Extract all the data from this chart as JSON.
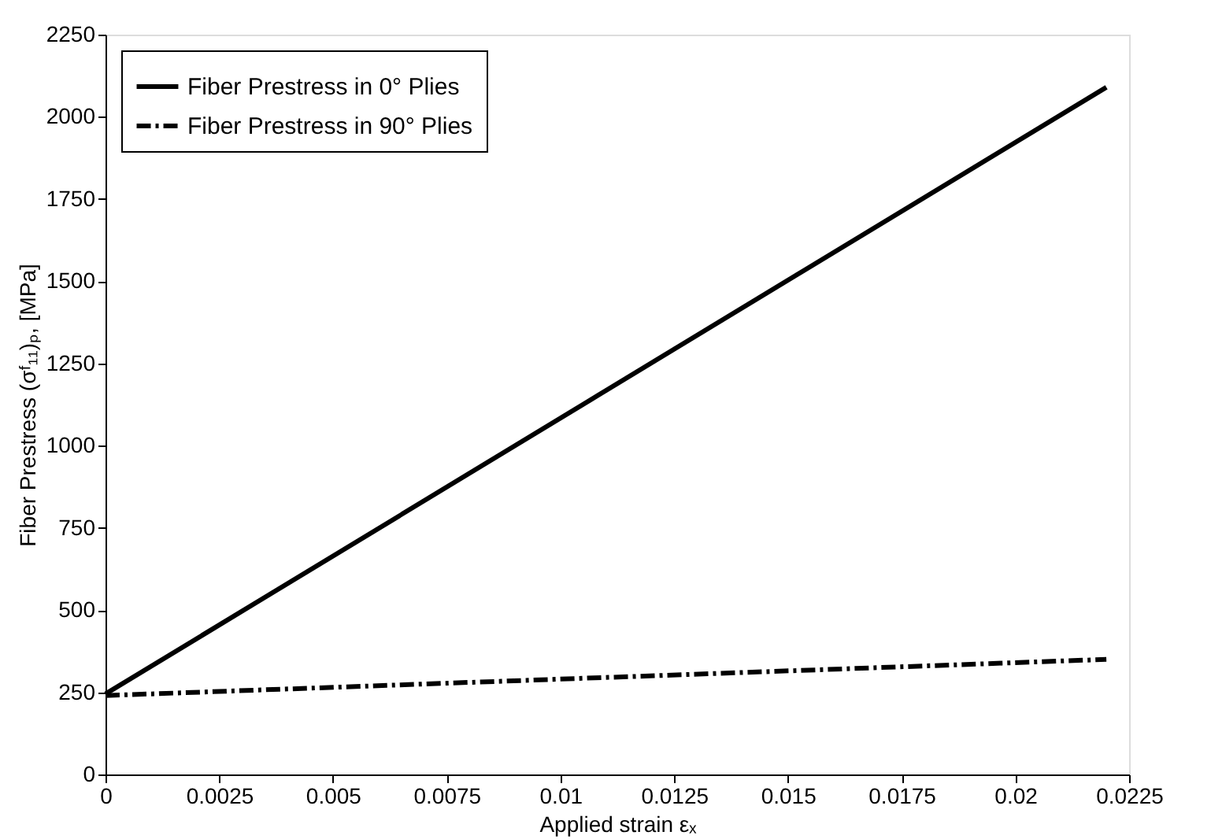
{
  "chart_data": {
    "type": "line",
    "xlabel": "Applied strain εₓ",
    "ylabel": "Fiber Prestress (σᶠ₁₁)ₚ, [MPa]",
    "x": [
      0,
      0.022
    ],
    "series": [
      {
        "name": "Fiber Prestress in 0° Plies",
        "color": "#000000",
        "line_style": "solid",
        "values": [
          245,
          2090
        ]
      },
      {
        "name": "Fiber Prestress in 90° Plies",
        "color": "#000000",
        "line_style": "dashdot",
        "values": [
          240,
          350
        ]
      }
    ],
    "xlim": [
      0,
      0.0225
    ],
    "xticks": [
      0,
      0.0025,
      0.005,
      0.0075,
      0.01,
      0.0125,
      0.015,
      0.0175,
      0.02,
      0.0225
    ],
    "ylim": [
      0,
      2250
    ],
    "yticks": [
      0,
      250,
      500,
      750,
      1000,
      1250,
      1500,
      1750,
      2000,
      2250
    ],
    "grid": false,
    "legend": "top left",
    "marker": "none"
  }
}
